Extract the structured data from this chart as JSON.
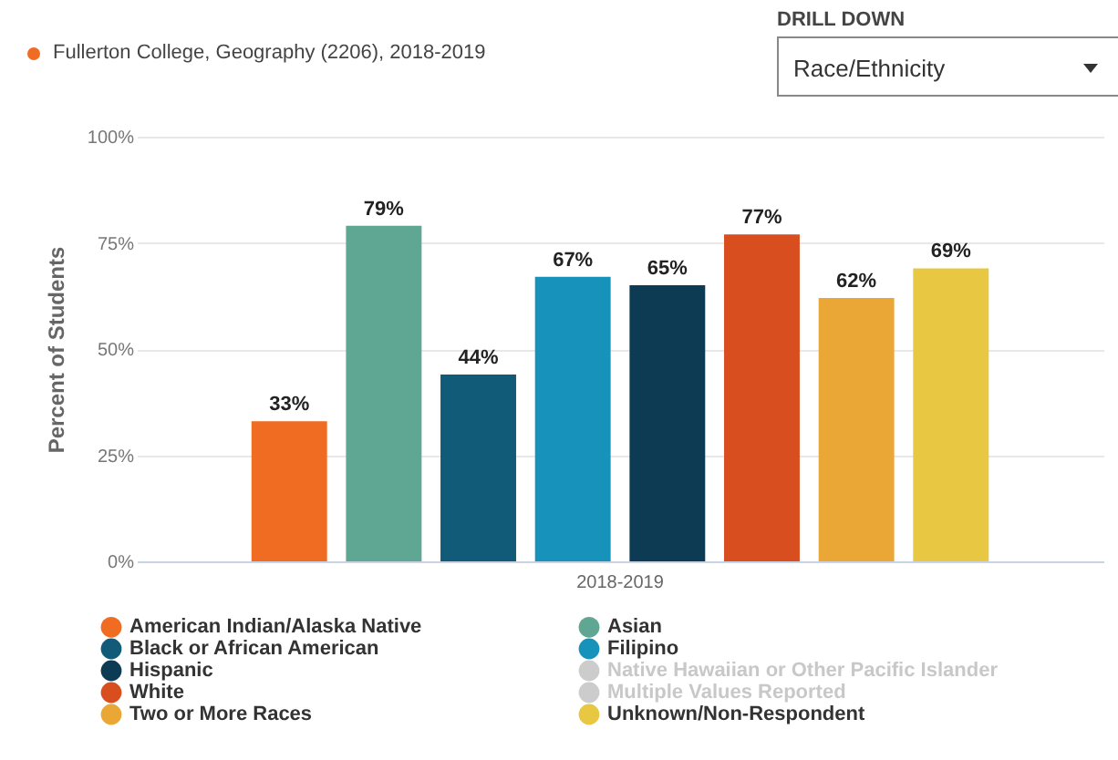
{
  "chart_data": {
    "type": "bar",
    "title": "Fullerton College, Geography (2206), 2018-2019",
    "ylabel": "Percent of Students",
    "categories": [
      "2018-2019"
    ],
    "series": [
      {
        "name": "American Indian/Alaska Native",
        "color": "#f06c22",
        "values": [
          33
        ],
        "value_labels": [
          "33%"
        ]
      },
      {
        "name": "Asian",
        "color": "#5fa792",
        "values": [
          79
        ],
        "value_labels": [
          "79%"
        ]
      },
      {
        "name": "Black or African American",
        "color": "#115a78",
        "values": [
          44
        ],
        "value_labels": [
          "44%"
        ]
      },
      {
        "name": "Filipino",
        "color": "#1793bb",
        "values": [
          67
        ],
        "value_labels": [
          "67%"
        ]
      },
      {
        "name": "Hispanic",
        "color": "#0d3b54",
        "values": [
          65
        ],
        "value_labels": [
          "65%"
        ]
      },
      {
        "name": "Native Hawaiian or Other Pacific Islander",
        "color": "#cccccc",
        "values": [
          null
        ]
      },
      {
        "name": "White",
        "color": "#d94e1f",
        "values": [
          77
        ],
        "value_labels": [
          "77%"
        ]
      },
      {
        "name": "Multiple Values Reported",
        "color": "#cccccc",
        "values": [
          null
        ]
      },
      {
        "name": "Two or More Races",
        "color": "#eba735",
        "values": [
          62
        ],
        "value_labels": [
          "62%"
        ]
      },
      {
        "name": "Unknown/Non-Respondent",
        "color": "#e8c742",
        "values": [
          69
        ],
        "value_labels": [
          "69%"
        ]
      }
    ],
    "ylim": [
      0,
      100
    ],
    "yticks": [
      {
        "value": 0,
        "label": "0%"
      },
      {
        "value": 25,
        "label": "25%"
      },
      {
        "value": 50,
        "label": "50%"
      },
      {
        "value": 75,
        "label": "75%"
      },
      {
        "value": 100,
        "label": "100%"
      }
    ],
    "grid": "y",
    "legend": "bottom",
    "annotations": [
      "DRILL DOWN",
      "Race/Ethnicity"
    ]
  }
}
